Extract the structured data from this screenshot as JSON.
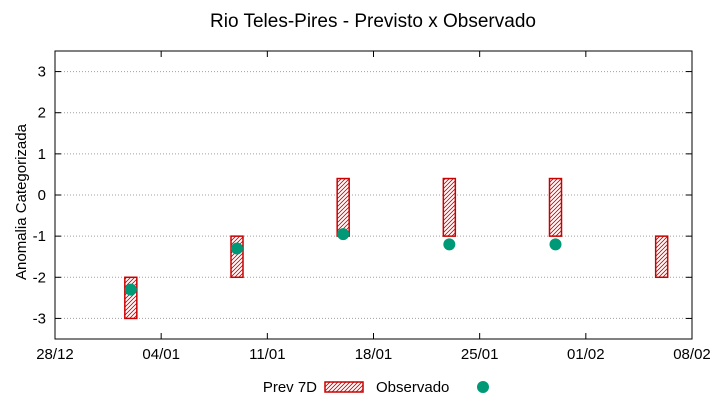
{
  "chart_data": {
    "type": "range-bar-with-points",
    "title": "Rio Teles-Pires - Previsto x Observado",
    "xlabel": "",
    "ylabel": "Anomalia Categorizada",
    "ylim": [
      -3.5,
      3.5
    ],
    "yticks": [
      -3,
      -2,
      -1,
      0,
      1,
      2,
      3
    ],
    "ytick_labels": [
      "-3",
      "-2",
      "-1",
      "0",
      "1",
      "2",
      "3"
    ],
    "xlim_days": [
      0,
      42
    ],
    "xticks": [
      {
        "day": 0,
        "label": "28/12"
      },
      {
        "day": 7,
        "label": "04/01"
      },
      {
        "day": 14,
        "label": "11/01"
      },
      {
        "day": 21,
        "label": "18/01"
      },
      {
        "day": 28,
        "label": "25/01"
      },
      {
        "day": 35,
        "label": "01/02"
      },
      {
        "day": 42,
        "label": "08/02"
      }
    ],
    "grid": true,
    "legend_position": "bottom",
    "series": [
      {
        "name": "Prev 7D",
        "kind": "range",
        "color": "#cc0000",
        "points": [
          {
            "day": 5,
            "low": -3,
            "high": -2
          },
          {
            "day": 12,
            "low": -2,
            "high": -1
          },
          {
            "day": 19,
            "low": -1,
            "high": 0.4
          },
          {
            "day": 26,
            "low": -1,
            "high": 0.4
          },
          {
            "day": 33,
            "low": -1,
            "high": 0.4
          },
          {
            "day": 40,
            "low": -2,
            "high": -1
          }
        ]
      },
      {
        "name": "Observado",
        "kind": "point",
        "color": "#009977",
        "points": [
          {
            "day": 5,
            "value": -2.3
          },
          {
            "day": 12,
            "value": -1.3
          },
          {
            "day": 19,
            "value": -0.95
          },
          {
            "day": 26,
            "value": -1.2
          },
          {
            "day": 33,
            "value": -1.2
          }
        ]
      }
    ]
  }
}
